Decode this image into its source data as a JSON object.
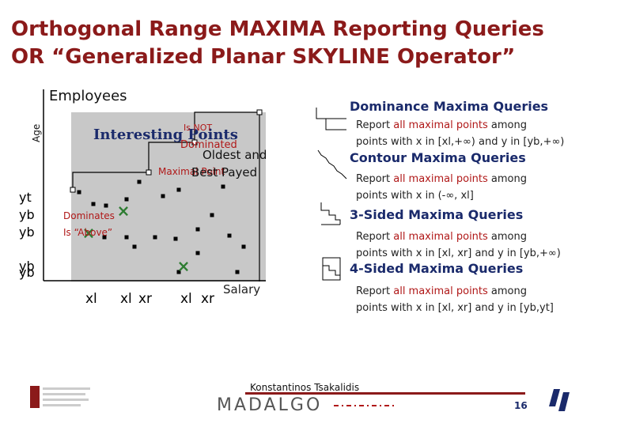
{
  "slide": {
    "title_line1": "Orthogonal Range MAXIMA Reporting Queries",
    "title_line2": "OR “Generalized Planar SKYLINE Operator”",
    "page_number": "16",
    "author": "Konstantinos Tsakalidis",
    "logo_madalgo": "MADALGO"
  },
  "plot": {
    "top_label": "Employees",
    "y_axis_label": "Age",
    "x_axis_label": "Salary",
    "interesting_points": "Interesting Points",
    "is_not": "Is NOT",
    "dominated": "Dominated",
    "oldest_and": "Oldest and",
    "best_payed": "Best Payed",
    "maximal_point": "Maximal Point",
    "dominates": "Dominates",
    "is_above": "Is “Above”",
    "y_labels": [
      "yt",
      "yb",
      "yb",
      "yb",
      "yb"
    ],
    "x_labels": [
      "xl",
      "xl",
      "xr",
      "xl",
      "xr"
    ]
  },
  "queries": [
    {
      "heading": "Dominance Maxima Queries",
      "line1_a": "Report ",
      "line1_red": "all maximal points",
      "line1_b": " among",
      "line2": "points with x in [xl,+∞) and y in [yb,+∞)"
    },
    {
      "heading": "Contour Maxima Queries",
      "line1_a": "Report ",
      "line1_red": "all maximal points",
      "line1_b": " among",
      "line2": "points with x in (-∞, xl]"
    },
    {
      "heading": "3-Sided Maxima Queries",
      "line1_a": "Report ",
      "line1_red": "all maximal points",
      "line1_b": " among",
      "line2": "points with x in [xl, xr] and y in [yb,+∞)"
    },
    {
      "heading": "4-Sided Maxima Queries",
      "line1_a": "Report ",
      "line1_red": "all maximal points",
      "line1_b": " among",
      "line2": "points with x in [xl, xr] and y in [yb,yt]"
    }
  ]
}
